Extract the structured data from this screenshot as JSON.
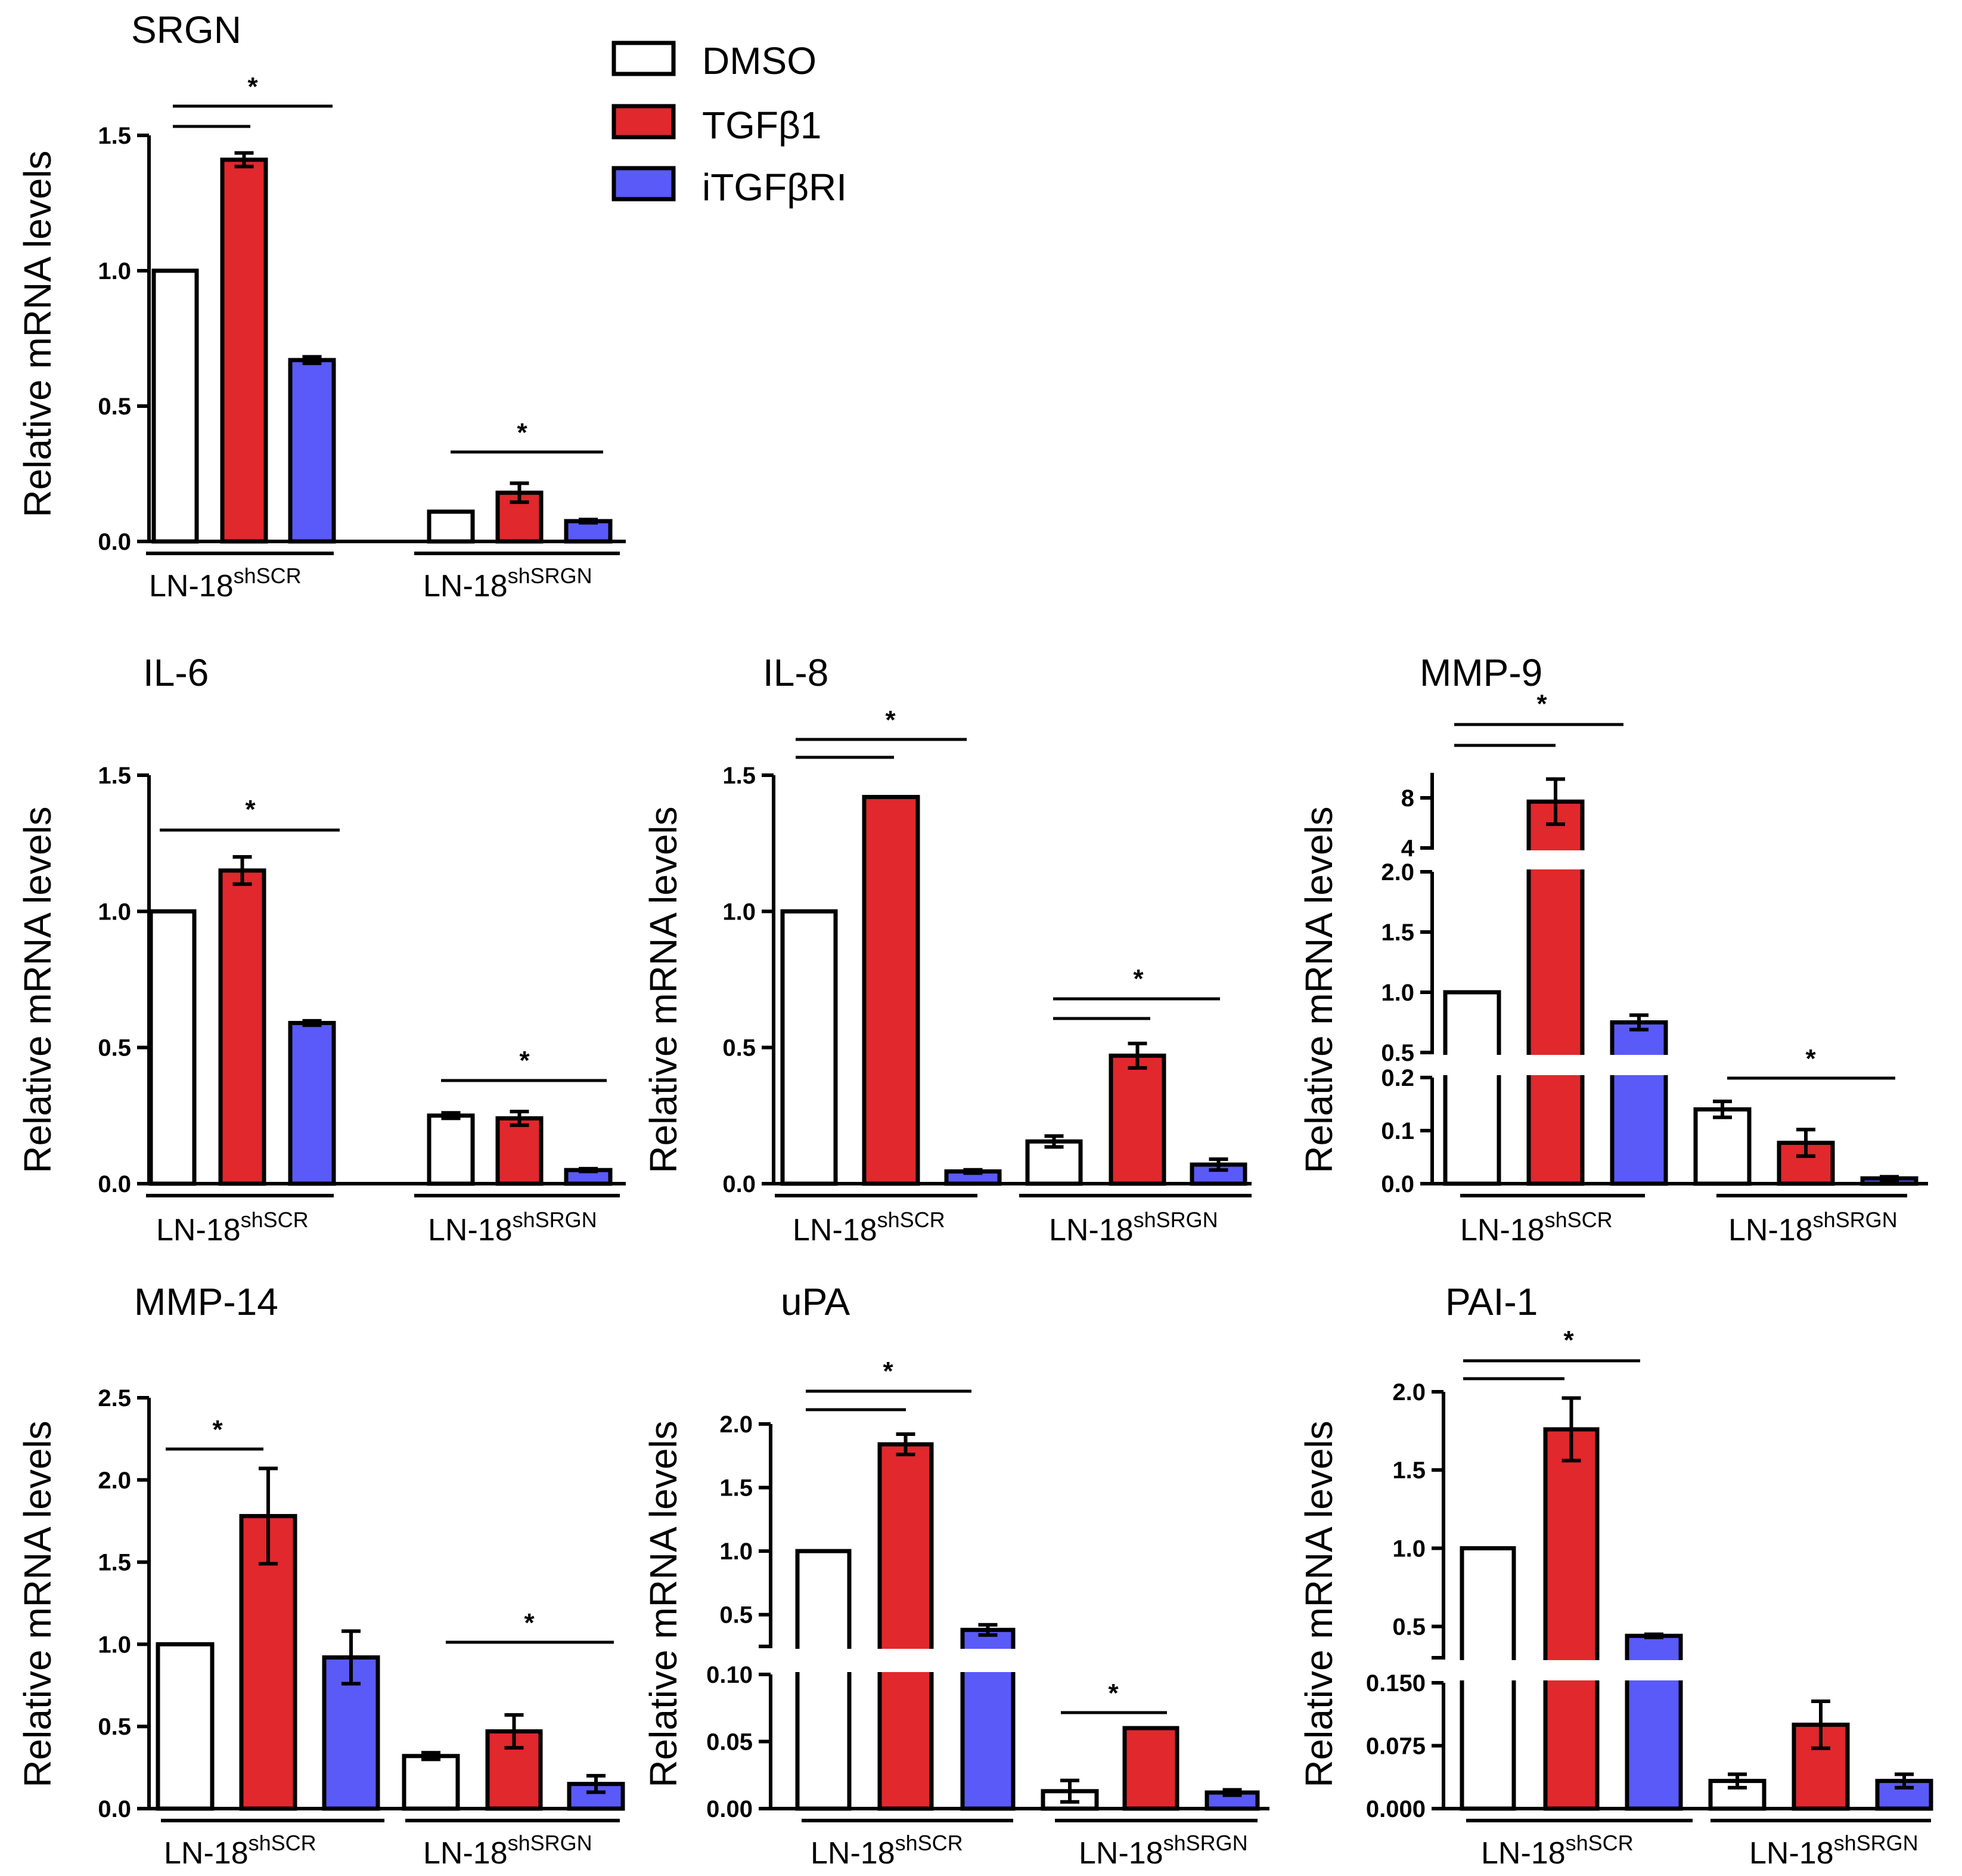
{
  "legend": [
    {
      "label": "DMSO",
      "color": "#ffffff"
    },
    {
      "label": "TGFβ1",
      "color": "#e0282d"
    },
    {
      "label": "iTGFβRI",
      "color": "#5a5af8"
    }
  ],
  "group_labels": {
    "base": "LN-18",
    "sup1": "shSCR",
    "sup2": "shSRGN"
  },
  "chart_data": [
    {
      "type": "bar",
      "title": "SRGN",
      "ylabel": "Relative mRNA levels",
      "categories": [
        "LN-18shSCR",
        "LN-18shSRGN"
      ],
      "series": [
        {
          "name": "DMSO",
          "values": [
            1.0,
            0.11
          ],
          "errors": [
            0.0,
            0.0
          ]
        },
        {
          "name": "TGFβ1",
          "values": [
            1.41,
            0.18
          ],
          "errors": [
            0.025,
            0.035
          ]
        },
        {
          "name": "iTGFβRI",
          "values": [
            0.67,
            0.075
          ],
          "errors": [
            0.012,
            0.006
          ]
        }
      ],
      "ylim": [
        0,
        1.5
      ],
      "yticks": [
        "0.0",
        "0.5",
        "1.0",
        "1.5"
      ],
      "annotations": [
        "*",
        "*"
      ]
    },
    {
      "type": "bar",
      "title": "IL-6",
      "ylabel": "Relative mRNA levels",
      "categories": [
        "LN-18shSCR",
        "LN-18shSRGN"
      ],
      "series": [
        {
          "name": "DMSO",
          "values": [
            1.0,
            0.25
          ],
          "errors": [
            0.0,
            0.01
          ]
        },
        {
          "name": "TGFβ1",
          "values": [
            1.15,
            0.24
          ],
          "errors": [
            0.05,
            0.025
          ]
        },
        {
          "name": "iTGFβRI",
          "values": [
            0.59,
            0.05
          ],
          "errors": [
            0.008,
            0.005
          ]
        }
      ],
      "ylim": [
        0,
        1.5
      ],
      "yticks": [
        "0.0",
        "0.5",
        "1.0",
        "1.5"
      ],
      "annotations": [
        "*",
        "*"
      ]
    },
    {
      "type": "bar",
      "title": "IL-8",
      "ylabel": "Relative mRNA levels",
      "categories": [
        "LN-18shSCR",
        "LN-18shSRGN"
      ],
      "series": [
        {
          "name": "DMSO",
          "values": [
            1.0,
            0.155
          ],
          "errors": [
            0.0,
            0.02
          ]
        },
        {
          "name": "TGFβ1",
          "values": [
            1.42,
            0.47
          ],
          "errors": [
            0.0,
            0.045
          ]
        },
        {
          "name": "iTGFβRI",
          "values": [
            0.045,
            0.07
          ],
          "errors": [
            0.006,
            0.02
          ]
        }
      ],
      "ylim": [
        0,
        1.5
      ],
      "yticks": [
        "0.0",
        "0.5",
        "1.0",
        "1.5"
      ],
      "annotations": [
        "*",
        "*"
      ]
    },
    {
      "type": "bar",
      "title": "MMP-9",
      "ylabel": "Relative mRNA levels",
      "categories": [
        "LN-18shSCR",
        "LN-18shSRGN"
      ],
      "series": [
        {
          "name": "DMSO",
          "values": [
            1.0,
            0.14
          ],
          "errors": [
            0.0,
            0.015
          ]
        },
        {
          "name": "TGFβ1",
          "values": [
            7.7,
            0.077
          ],
          "errors": [
            1.8,
            0.025
          ]
        },
        {
          "name": "iTGFβRI",
          "values": [
            0.75,
            0.01
          ],
          "errors": [
            0.06,
            0.003
          ]
        }
      ],
      "y_segments": [
        [
          0,
          0.2
        ],
        [
          0.5,
          2.0
        ],
        [
          4,
          10
        ]
      ],
      "yticks": [
        "0.0",
        "0.1",
        "0.2",
        "0.5",
        "1.0",
        "1.5",
        "2.0",
        "4",
        "8"
      ],
      "annotations": [
        "*",
        "*"
      ]
    },
    {
      "type": "bar",
      "title": "MMP-14",
      "ylabel": "Relative mRNA levels",
      "categories": [
        "LN-18shSCR",
        "LN-18shSRGN"
      ],
      "series": [
        {
          "name": "DMSO",
          "values": [
            1.0,
            0.32
          ],
          "errors": [
            0.0,
            0.02
          ]
        },
        {
          "name": "TGFβ1",
          "values": [
            1.78,
            0.47
          ],
          "errors": [
            0.29,
            0.1
          ]
        },
        {
          "name": "iTGFβRI",
          "values": [
            0.92,
            0.15
          ],
          "errors": [
            0.16,
            0.05
          ]
        }
      ],
      "ylim": [
        0,
        2.5
      ],
      "yticks": [
        "0.0",
        "0.5",
        "1.0",
        "1.5",
        "2.0",
        "2.5"
      ],
      "annotations": [
        "*",
        "*"
      ]
    },
    {
      "type": "bar",
      "title": "uPA",
      "ylabel": "Relative mRNA levels",
      "categories": [
        "LN-18shSCR",
        "LN-18shSRGN"
      ],
      "series": [
        {
          "name": "DMSO",
          "values": [
            1.0,
            0.013
          ],
          "errors": [
            0.0,
            0.008
          ]
        },
        {
          "name": "TGFβ1",
          "values": [
            1.84,
            0.06
          ],
          "errors": [
            0.08,
            0.0
          ]
        },
        {
          "name": "iTGFβRI",
          "values": [
            0.38,
            0.012
          ],
          "errors": [
            0.04,
            0.002
          ]
        }
      ],
      "y_segments": [
        [
          0,
          0.1
        ],
        [
          0.25,
          2.0
        ]
      ],
      "yticks": [
        "0.00",
        "0.05",
        "0.10",
        "0.5",
        "1.0",
        "1.5",
        "2.0"
      ],
      "annotations": [
        "*",
        "*"
      ]
    },
    {
      "type": "bar",
      "title": "PAI-1",
      "ylabel": "Relative mRNA levels",
      "categories": [
        "LN-18shSCR",
        "LN-18shSRGN"
      ],
      "series": [
        {
          "name": "DMSO",
          "values": [
            1.0,
            0.033
          ],
          "errors": [
            0.0,
            0.008
          ]
        },
        {
          "name": "TGFβ1",
          "values": [
            1.76,
            0.1
          ],
          "errors": [
            0.2,
            0.028
          ]
        },
        {
          "name": "iTGFβRI",
          "values": [
            0.44,
            0.033
          ],
          "errors": [
            0.01,
            0.008
          ]
        }
      ],
      "y_segments": [
        [
          0,
          0.15
        ],
        [
          0.3,
          2.0
        ]
      ],
      "yticks": [
        "0.000",
        "0.075",
        "0.150",
        "0.5",
        "1.0",
        "1.5",
        "2.0"
      ],
      "annotations": [
        "*"
      ]
    }
  ]
}
